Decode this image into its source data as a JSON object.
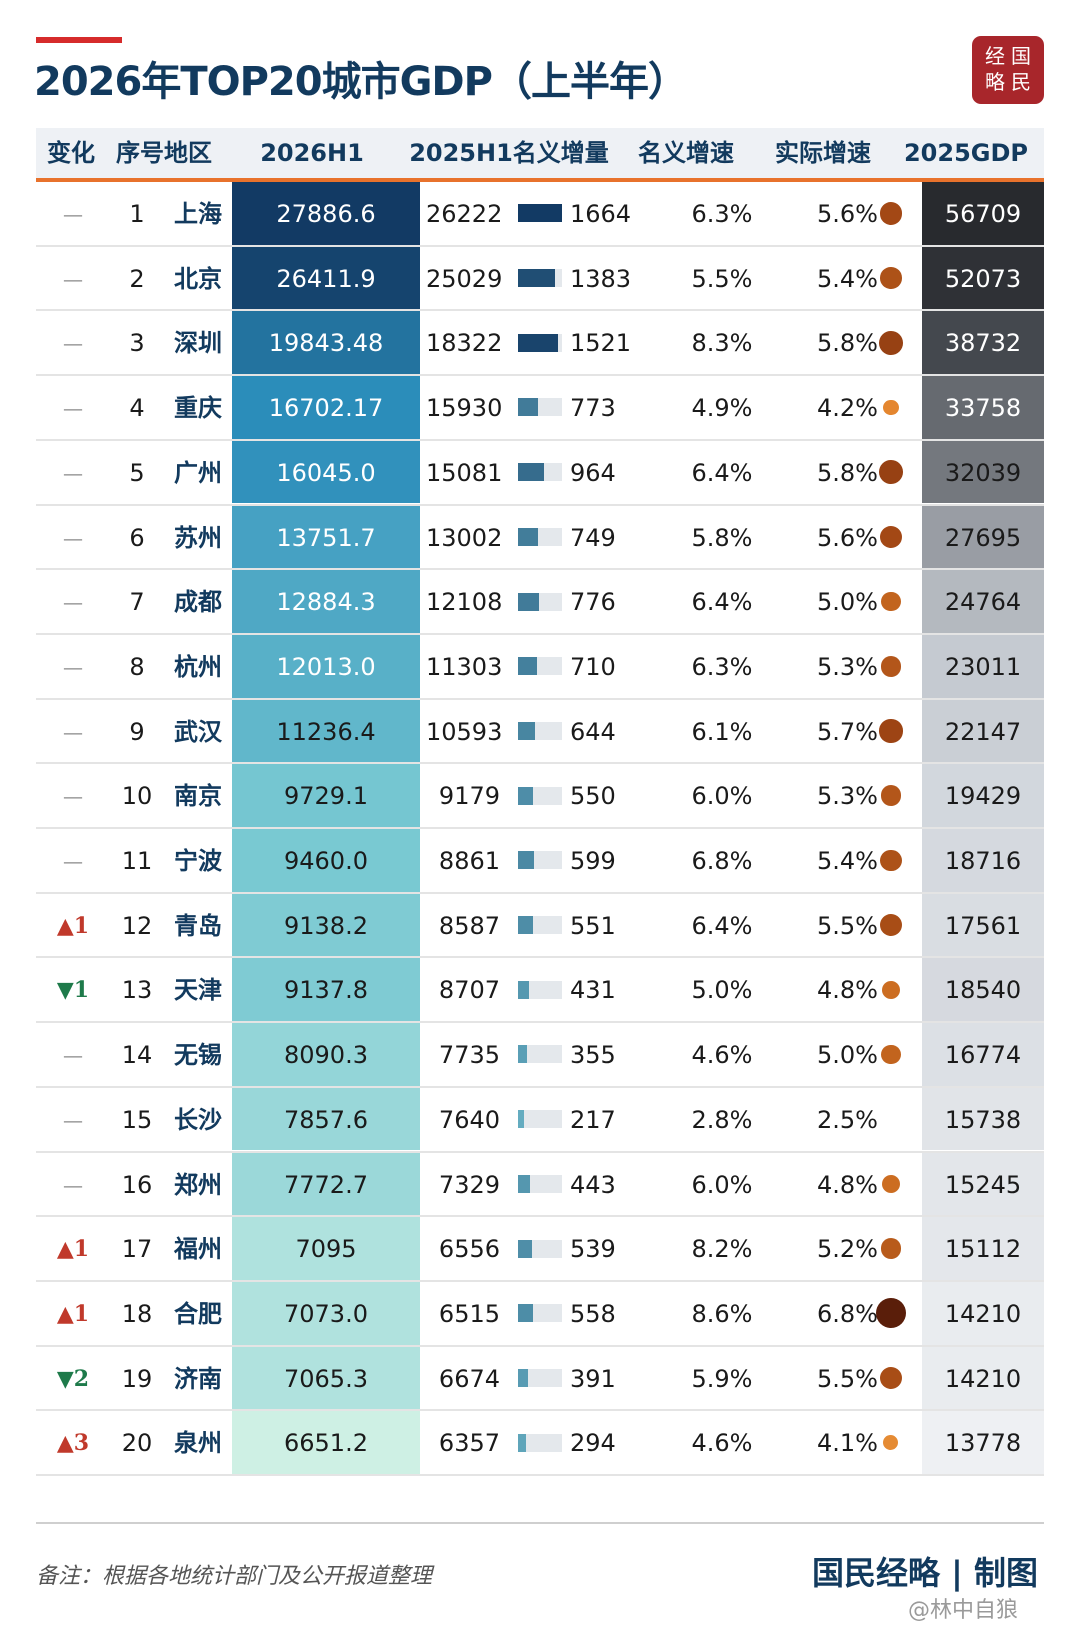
{
  "page": {
    "title": "2026年TOP20城市GDP（上半年）",
    "seal": [
      "经",
      "国",
      "略",
      "民"
    ],
    "note": "备注：根据各地统计部门及公开报道整理",
    "brand": "国民经略 | 制图",
    "weibo": "@林中自狼"
  },
  "colors": {
    "title": "#123a5e",
    "accent_line": "#e8722c",
    "up": "#c0392b",
    "down": "#1e7a4a",
    "bar": "#1a4f80",
    "bar_track": "#e4e8ec",
    "dot": "#d9731e"
  },
  "chart_data": {
    "type": "table",
    "title": "2026年TOP20城市GDP（上半年）",
    "columns": [
      "变化",
      "序号",
      "地区",
      "2026H1",
      "2025H1",
      "名义增量",
      "名义增速",
      "实际增速",
      "2025GDP"
    ],
    "header_labels": [
      "变化",
      "序号地区",
      "2026H1",
      "2025H1名义增量",
      "名义增速",
      "实际增速",
      "2025GDP"
    ],
    "rows": [
      {
        "change": "—",
        "rank": "1",
        "city": "上海",
        "h1_2026": "27886.6",
        "h1_2025": "26222",
        "increment": "1664",
        "nominal": "6.3%",
        "real": "5.6%",
        "gdp_2025": "56709"
      },
      {
        "change": "—",
        "rank": "2",
        "city": "北京",
        "h1_2026": "26411.9",
        "h1_2025": "25029",
        "increment": "1383",
        "nominal": "5.5%",
        "real": "5.4%",
        "gdp_2025": "52073"
      },
      {
        "change": "—",
        "rank": "3",
        "city": "深圳",
        "h1_2026": "19843.48",
        "h1_2025": "18322",
        "increment": "1521",
        "nominal": "8.3%",
        "real": "5.8%",
        "gdp_2025": "38732"
      },
      {
        "change": "—",
        "rank": "4",
        "city": "重庆",
        "h1_2026": "16702.17",
        "h1_2025": "15930",
        "increment": "773",
        "nominal": "4.9%",
        "real": "4.2%",
        "gdp_2025": "33758"
      },
      {
        "change": "—",
        "rank": "5",
        "city": "广州",
        "h1_2026": "16045.0",
        "h1_2025": "15081",
        "increment": "964",
        "nominal": "6.4%",
        "real": "5.8%",
        "gdp_2025": "32039"
      },
      {
        "change": "—",
        "rank": "6",
        "city": "苏州",
        "h1_2026": "13751.7",
        "h1_2025": "13002",
        "increment": "749",
        "nominal": "5.8%",
        "real": "5.6%",
        "gdp_2025": "27695"
      },
      {
        "change": "—",
        "rank": "7",
        "city": "成都",
        "h1_2026": "12884.3",
        "h1_2025": "12108",
        "increment": "776",
        "nominal": "6.4%",
        "real": "5.0%",
        "gdp_2025": "24764"
      },
      {
        "change": "—",
        "rank": "8",
        "city": "杭州",
        "h1_2026": "12013.0",
        "h1_2025": "11303",
        "increment": "710",
        "nominal": "6.3%",
        "real": "5.3%",
        "gdp_2025": "23011"
      },
      {
        "change": "—",
        "rank": "9",
        "city": "武汉",
        "h1_2026": "11236.4",
        "h1_2025": "10593",
        "increment": "644",
        "nominal": "6.1%",
        "real": "5.7%",
        "gdp_2025": "22147"
      },
      {
        "change": "—",
        "rank": "10",
        "city": "南京",
        "h1_2026": "9729.1",
        "h1_2025": "9179",
        "increment": "550",
        "nominal": "6.0%",
        "real": "5.3%",
        "gdp_2025": "19429"
      },
      {
        "change": "—",
        "rank": "11",
        "city": "宁波",
        "h1_2026": "9460.0",
        "h1_2025": "8861",
        "increment": "599",
        "nominal": "6.8%",
        "real": "5.4%",
        "gdp_2025": "18716"
      },
      {
        "change": "▲1",
        "rank": "12",
        "city": "青岛",
        "h1_2026": "9138.2",
        "h1_2025": "8587",
        "increment": "551",
        "nominal": "6.4%",
        "real": "5.5%",
        "gdp_2025": "17561"
      },
      {
        "change": "▼1",
        "rank": "13",
        "city": "天津",
        "h1_2026": "9137.8",
        "h1_2025": "8707",
        "increment": "431",
        "nominal": "5.0%",
        "real": "4.8%",
        "gdp_2025": "18540"
      },
      {
        "change": "—",
        "rank": "14",
        "city": "无锡",
        "h1_2026": "8090.3",
        "h1_2025": "7735",
        "increment": "355",
        "nominal": "4.6%",
        "real": "5.0%",
        "gdp_2025": "16774"
      },
      {
        "change": "—",
        "rank": "15",
        "city": "长沙",
        "h1_2026": "7857.6",
        "h1_2025": "7640",
        "increment": "217",
        "nominal": "2.8%",
        "real": "2.5%",
        "gdp_2025": "15738"
      },
      {
        "change": "—",
        "rank": "16",
        "city": "郑州",
        "h1_2026": "7772.7",
        "h1_2025": "7329",
        "increment": "443",
        "nominal": "6.0%",
        "real": "4.8%",
        "gdp_2025": "15245"
      },
      {
        "change": "▲1",
        "rank": "17",
        "city": "福州",
        "h1_2026": "7095",
        "h1_2025": "6556",
        "increment": "539",
        "nominal": "8.2%",
        "real": "5.2%",
        "gdp_2025": "15112"
      },
      {
        "change": "▲1",
        "rank": "18",
        "city": "合肥",
        "h1_2026": "7073.0",
        "h1_2025": "6515",
        "increment": "558",
        "nominal": "8.6%",
        "real": "6.8%",
        "gdp_2025": "14210"
      },
      {
        "change": "▼2",
        "rank": "19",
        "city": "济南",
        "h1_2026": "7065.3",
        "h1_2025": "6674",
        "increment": "391",
        "nominal": "5.9%",
        "real": "5.5%",
        "gdp_2025": "14210"
      },
      {
        "change": "▲3",
        "rank": "20",
        "city": "泉州",
        "h1_2026": "6651.2",
        "h1_2025": "6357",
        "increment": "294",
        "nominal": "4.6%",
        "real": "4.1%",
        "gdp_2025": "13778"
      }
    ]
  }
}
